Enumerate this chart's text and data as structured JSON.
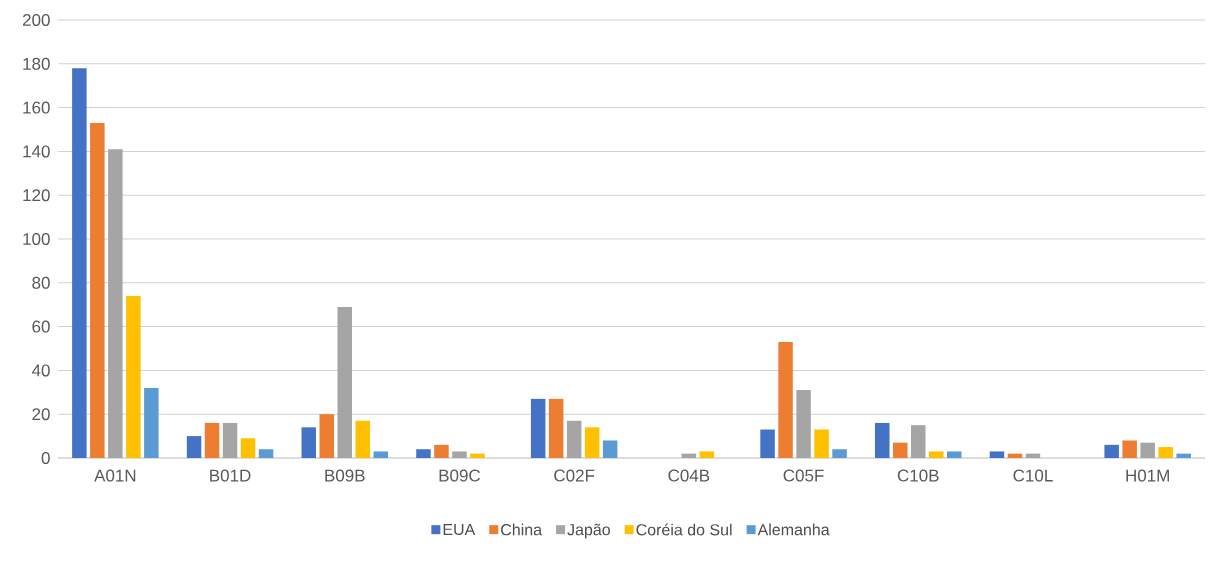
{
  "chart_data": {
    "type": "bar",
    "categories": [
      "A01N",
      "B01D",
      "B09B",
      "B09C",
      "C02F",
      "C04B",
      "C05F",
      "C10B",
      "C10L",
      "H01M"
    ],
    "series": [
      {
        "name": "EUA",
        "color": "#4472c4",
        "values": [
          178,
          10,
          14,
          4,
          27,
          0,
          13,
          16,
          3,
          6
        ]
      },
      {
        "name": "China",
        "color": "#ed7d31",
        "values": [
          153,
          16,
          20,
          6,
          27,
          0,
          53,
          7,
          2,
          8
        ]
      },
      {
        "name": "Japão",
        "color": "#a5a5a5",
        "values": [
          141,
          16,
          69,
          3,
          17,
          2,
          31,
          15,
          2,
          7
        ]
      },
      {
        "name": "Coréia do Sul",
        "color": "#ffc000",
        "values": [
          74,
          9,
          17,
          2,
          14,
          3,
          13,
          3,
          0,
          5
        ]
      },
      {
        "name": "Alemanha",
        "color": "#5b9bd5",
        "values": [
          32,
          4,
          3,
          0,
          8,
          0,
          4,
          3,
          0,
          2
        ]
      }
    ],
    "ylim": [
      0,
      200
    ],
    "yticks": [
      0,
      20,
      40,
      60,
      80,
      100,
      120,
      140,
      160,
      180,
      200
    ],
    "grid": "y",
    "legend": "bottom"
  }
}
